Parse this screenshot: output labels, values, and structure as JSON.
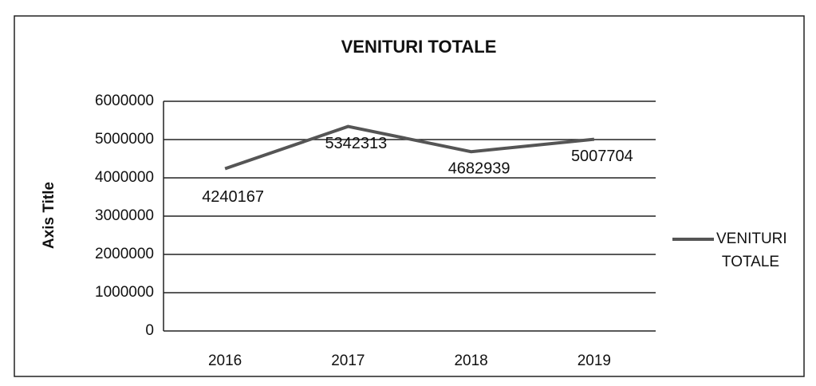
{
  "chart_data": {
    "type": "line",
    "title": "VENITURI TOTALE",
    "y_label": "Axis Title",
    "categories": [
      "2016",
      "2017",
      "2018",
      "2019"
    ],
    "series": [
      {
        "name": "VENITURI TOTALE",
        "color": "#555555",
        "values": [
          4240167,
          5342313,
          4682939,
          5007704
        ]
      }
    ],
    "ylim": [
      0,
      6000000
    ],
    "yticks": [
      0,
      1000000,
      2000000,
      3000000,
      4000000,
      5000000,
      6000000
    ],
    "grid": true,
    "legend": "right"
  }
}
